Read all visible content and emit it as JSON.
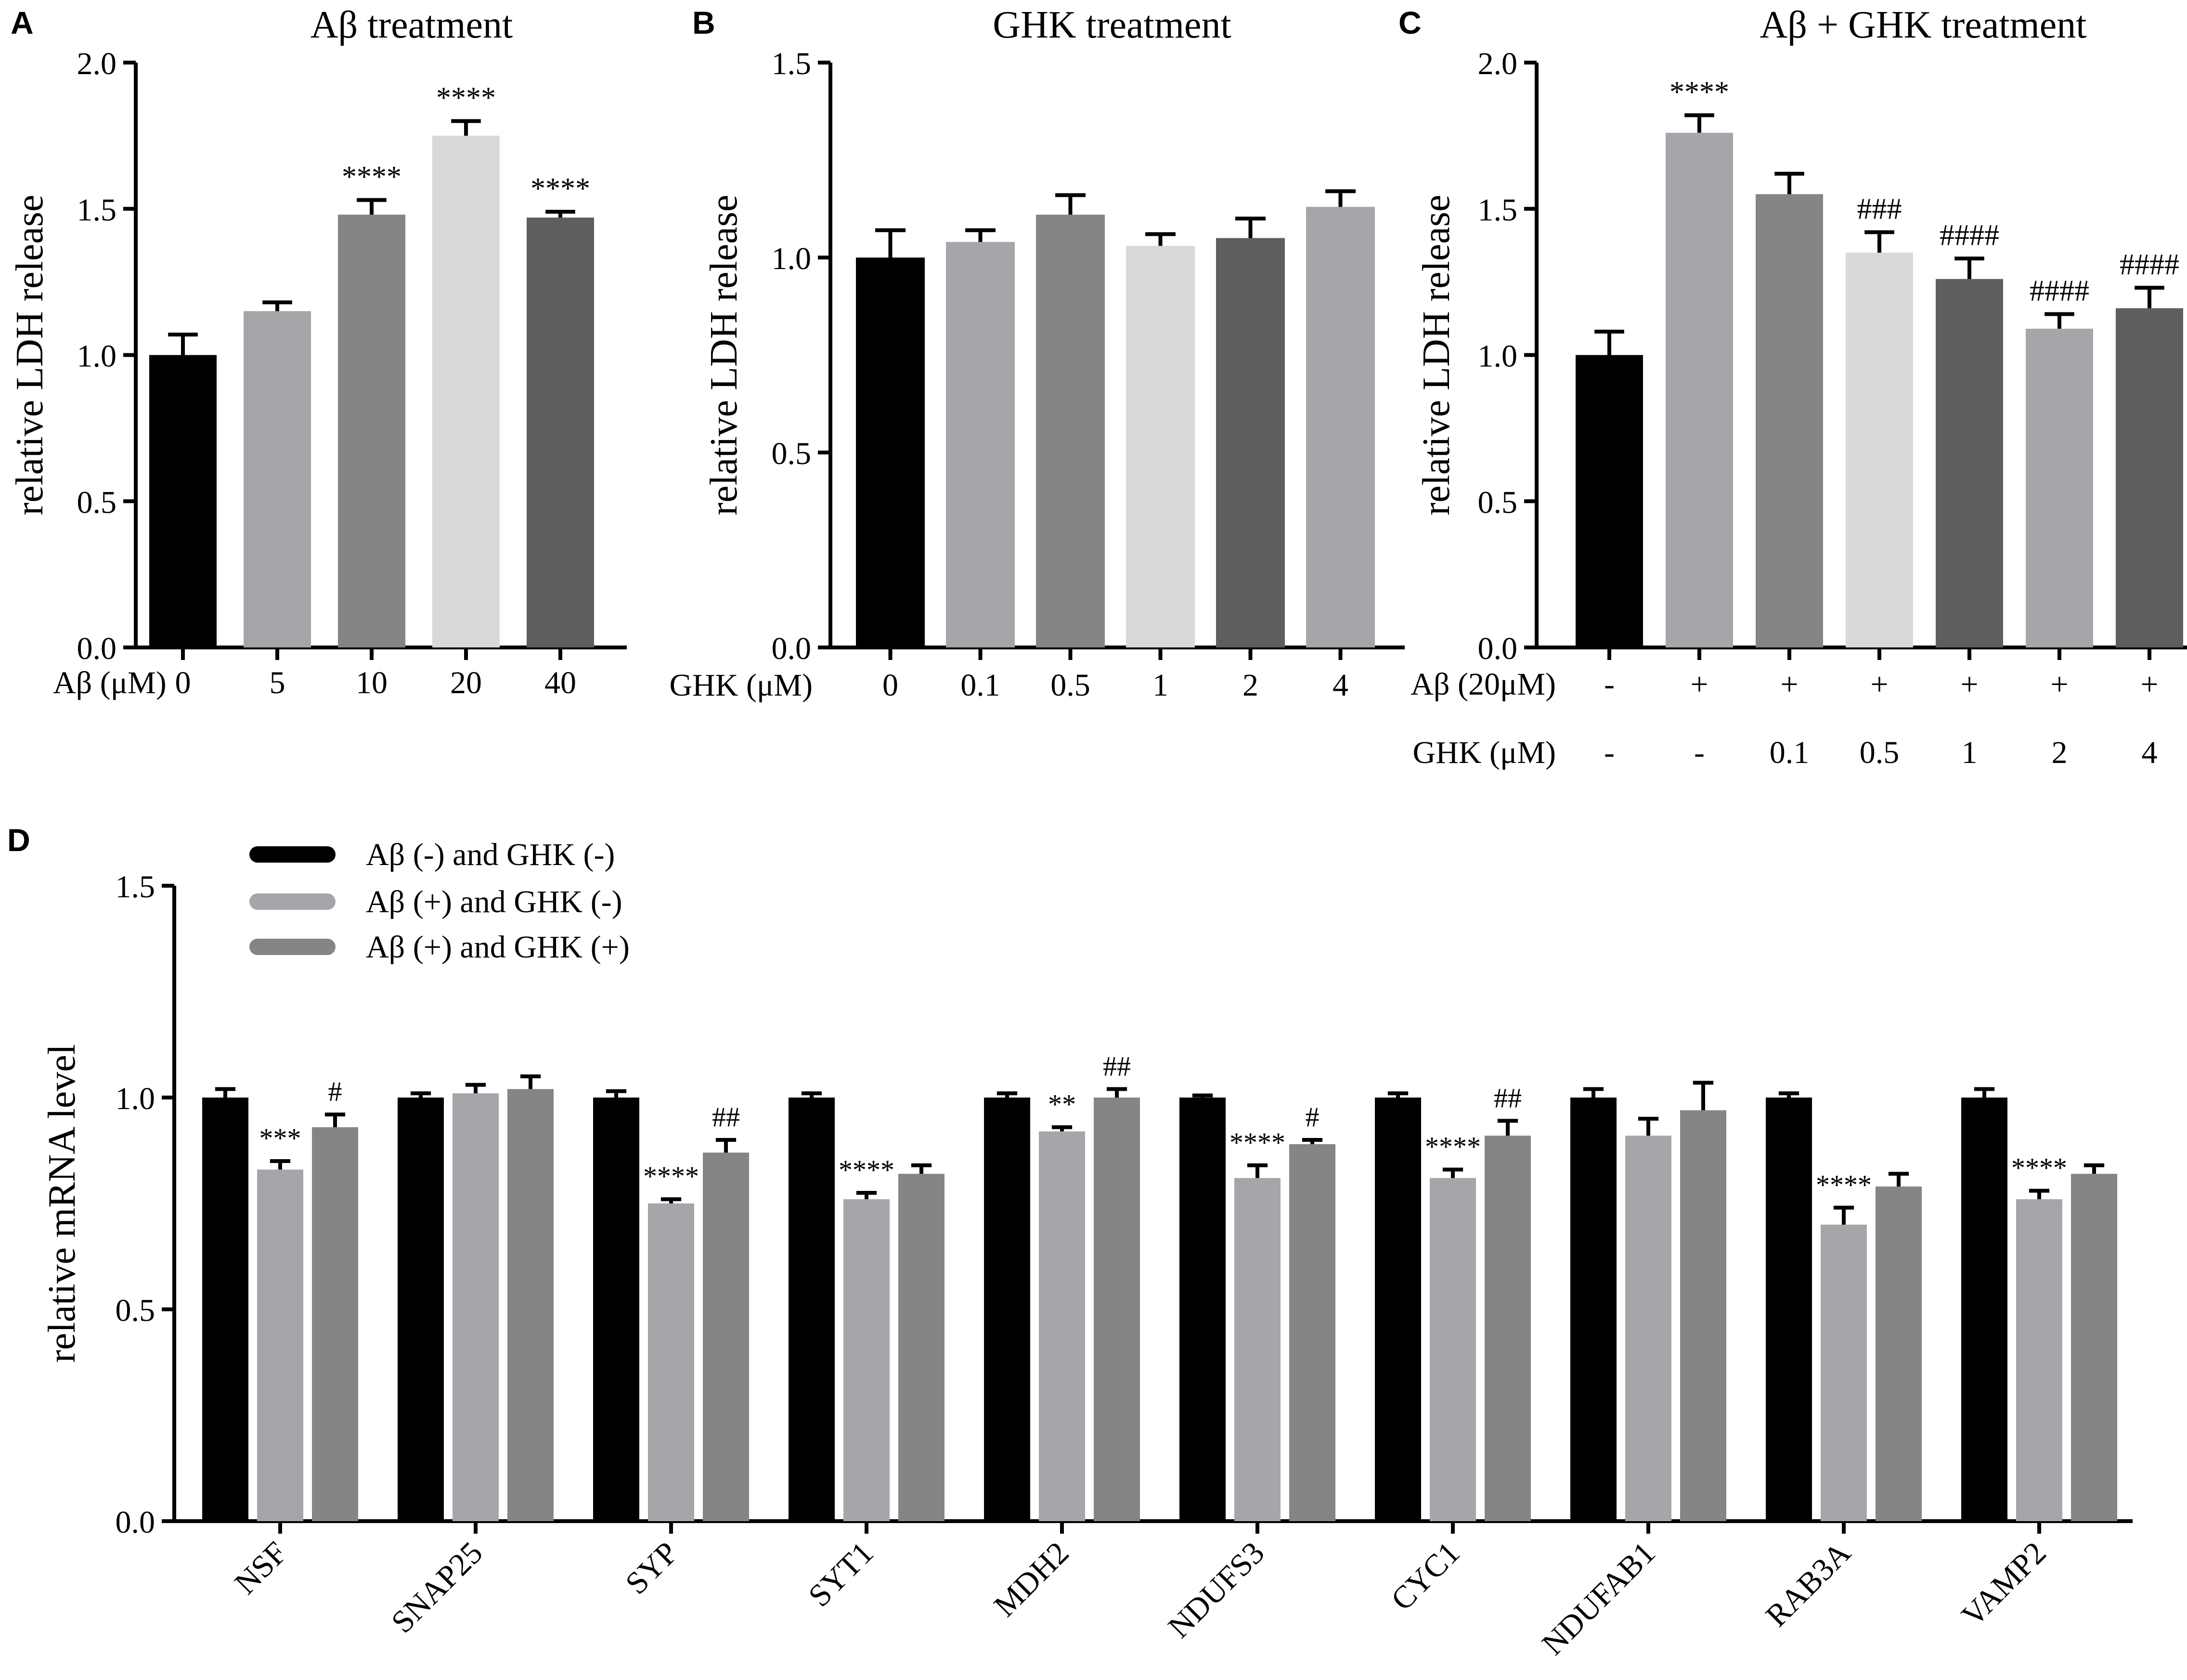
{
  "chart_data": [
    {
      "id": "A",
      "type": "bar",
      "panel_label": "A",
      "title": "Aβ treatment",
      "ylabel": "relative LDH release",
      "ylim": [
        0,
        2.0
      ],
      "yticks": [
        "0.0",
        "0.5",
        "1.0",
        "1.5",
        "2.0"
      ],
      "xaxis_rows": [
        {
          "label": "Aβ (μM)",
          "values": [
            "0",
            "5",
            "10",
            "20",
            "40"
          ]
        }
      ],
      "values": [
        1.0,
        1.15,
        1.48,
        1.75,
        1.47
      ],
      "errors": [
        0.07,
        0.03,
        0.05,
        0.05,
        0.02
      ],
      "colors": [
        "#000000",
        "#a6a6aa",
        "#858585",
        "#d9d9d9",
        "#5e5e5e"
      ],
      "annotations": [
        "",
        "",
        "****",
        "****",
        "****"
      ]
    },
    {
      "id": "B",
      "type": "bar",
      "panel_label": "B",
      "title": "GHK treatment",
      "ylabel": "relative LDH release",
      "ylim": [
        0,
        1.5
      ],
      "yticks": [
        "0.0",
        "0.5",
        "1.0",
        "1.5"
      ],
      "xaxis_rows": [
        {
          "label": "GHK (μM)",
          "values": [
            "0",
            "0.1",
            "0.5",
            "1",
            "2",
            "4"
          ]
        }
      ],
      "values": [
        1.0,
        1.04,
        1.11,
        1.03,
        1.05,
        1.13
      ],
      "errors": [
        0.07,
        0.03,
        0.05,
        0.03,
        0.05,
        0.04
      ],
      "colors": [
        "#000000",
        "#a6a6aa",
        "#858585",
        "#d9d9d9",
        "#5e5e5e",
        "#a6a6aa"
      ],
      "annotations": [
        "",
        "",
        "",
        "",
        "",
        ""
      ]
    },
    {
      "id": "C",
      "type": "bar",
      "panel_label": "C",
      "title": "Aβ + GHK  treatment",
      "ylabel": "relative LDH release",
      "ylim": [
        0,
        2.0
      ],
      "yticks": [
        "0.0",
        "0.5",
        "1.0",
        "1.5",
        "2.0"
      ],
      "xaxis_rows": [
        {
          "label": "Aβ (20μM)",
          "values": [
            "-",
            "+",
            "+",
            "+",
            "+",
            "+",
            "+"
          ]
        },
        {
          "label": "GHK (μM)",
          "values": [
            "-",
            "-",
            "0.1",
            "0.5",
            "1",
            "2",
            "4"
          ]
        }
      ],
      "values": [
        1.0,
        1.76,
        1.55,
        1.35,
        1.26,
        1.09,
        1.16
      ],
      "errors": [
        0.08,
        0.06,
        0.07,
        0.07,
        0.07,
        0.05,
        0.07
      ],
      "colors": [
        "#000000",
        "#a6a6aa",
        "#858585",
        "#d9d9d9",
        "#5e5e5e",
        "#a6a6aa",
        "#5e5e5e"
      ],
      "annotations": [
        "",
        "****",
        "",
        "###",
        "####",
        "####",
        "####"
      ]
    },
    {
      "id": "D",
      "type": "bar",
      "panel_label": "D",
      "title": "",
      "ylabel": "relative mRNA level",
      "ylim": [
        0,
        1.5
      ],
      "yticks": [
        "0.0",
        "0.5",
        "1.0",
        "1.5"
      ],
      "categories": [
        "NSF",
        "SNAP25",
        "SYP",
        "SYT1",
        "MDH2",
        "NDUFS3",
        "CYC1",
        "NDUFAB1",
        "RAB3A",
        "VAMP2"
      ],
      "series": [
        {
          "name": "Aβ (-) and GHK (-)",
          "color": "#000000",
          "values": [
            1.0,
            1.0,
            1.0,
            1.0,
            1.0,
            1.0,
            1.0,
            1.0,
            1.0,
            1.0
          ],
          "errors": [
            0.02,
            0.01,
            0.015,
            0.01,
            0.01,
            0.005,
            0.01,
            0.02,
            0.01,
            0.02
          ],
          "annotations": [
            "",
            "",
            "",
            "",
            "",
            "",
            "",
            "",
            "",
            ""
          ]
        },
        {
          "name": "Aβ (+) and GHK (-)",
          "color": "#a6a6aa",
          "values": [
            0.83,
            1.01,
            0.75,
            0.76,
            0.92,
            0.81,
            0.81,
            0.91,
            0.7,
            0.76
          ],
          "errors": [
            0.02,
            0.02,
            0.01,
            0.015,
            0.01,
            0.03,
            0.02,
            0.04,
            0.04,
            0.02
          ],
          "annotations": [
            "***",
            "",
            "****",
            "****",
            "**",
            "****",
            "****",
            "",
            "****",
            "****"
          ]
        },
        {
          "name": "Aβ (+) and GHK (+)",
          "color": "#858585",
          "values": [
            0.93,
            1.02,
            0.87,
            0.82,
            1.0,
            0.89,
            0.91,
            0.97,
            0.79,
            0.82
          ],
          "errors": [
            0.03,
            0.03,
            0.03,
            0.02,
            0.02,
            0.01,
            0.035,
            0.065,
            0.03,
            0.02
          ],
          "annotations": [
            "#",
            "",
            "##",
            "",
            "##",
            "#",
            "##",
            "",
            "",
            ""
          ]
        }
      ]
    }
  ]
}
